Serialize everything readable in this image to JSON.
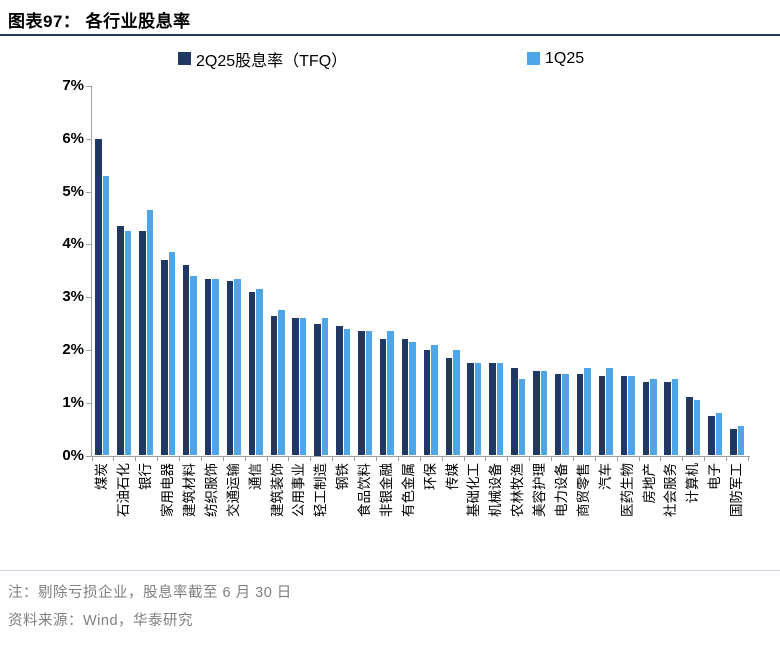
{
  "header": {
    "title": "图表97：  各行业股息率"
  },
  "colors": {
    "dark_series": "#1f3864",
    "light_series": "#4ea6e6",
    "axis": "#a0a0a0",
    "title_rule": "#1f3864",
    "bottom_rule": "#c9d6e2",
    "note_text": "#7f7f7f"
  },
  "chart_data": {
    "type": "bar",
    "title": "各行业股息率",
    "categories": [
      "煤炭",
      "石油石化",
      "银行",
      "家用电器",
      "建筑材料",
      "纺织服饰",
      "交通运输",
      "通信",
      "建筑装饰",
      "公用事业",
      "轻工制造",
      "钢铁",
      "食品饮料",
      "非银金融",
      "有色金属",
      "环保",
      "传媒",
      "基础化工",
      "机械设备",
      "农林牧渔",
      "美容护理",
      "电力设备",
      "商贸零售",
      "汽车",
      "医药生物",
      "房地产",
      "社会服务",
      "计算机",
      "电子",
      "国防军工"
    ],
    "series": [
      {
        "name": "2Q25股息率（TFQ）",
        "color": "#1f3864",
        "values": [
          6.0,
          4.35,
          4.25,
          3.7,
          3.6,
          3.35,
          3.3,
          3.1,
          2.65,
          2.6,
          2.5,
          2.45,
          2.35,
          2.2,
          2.2,
          2.0,
          1.85,
          1.75,
          1.75,
          1.65,
          1.6,
          1.55,
          1.55,
          1.5,
          1.5,
          1.4,
          1.4,
          1.1,
          0.75,
          0.5
        ]
      },
      {
        "name": "1Q25",
        "color": "#4ea6e6",
        "values": [
          5.3,
          4.25,
          4.65,
          3.85,
          3.4,
          3.35,
          3.35,
          3.15,
          2.75,
          2.6,
          2.6,
          2.4,
          2.35,
          2.35,
          2.15,
          2.1,
          2.0,
          1.75,
          1.75,
          1.45,
          1.6,
          1.55,
          1.65,
          1.65,
          1.5,
          1.45,
          1.45,
          1.05,
          0.8,
          0.55
        ]
      }
    ],
    "xlabel": "",
    "ylabel": "",
    "ylim": [
      0,
      7
    ],
    "yticks": [
      0,
      1,
      2,
      3,
      4,
      5,
      6,
      7
    ],
    "ytick_format": "{v}%",
    "grid": false,
    "legend_position": "top"
  },
  "notes": {
    "note": "注：剔除亏损企业，股息率截至 6 月 30 日",
    "source": "资料来源：Wind，华泰研究"
  }
}
